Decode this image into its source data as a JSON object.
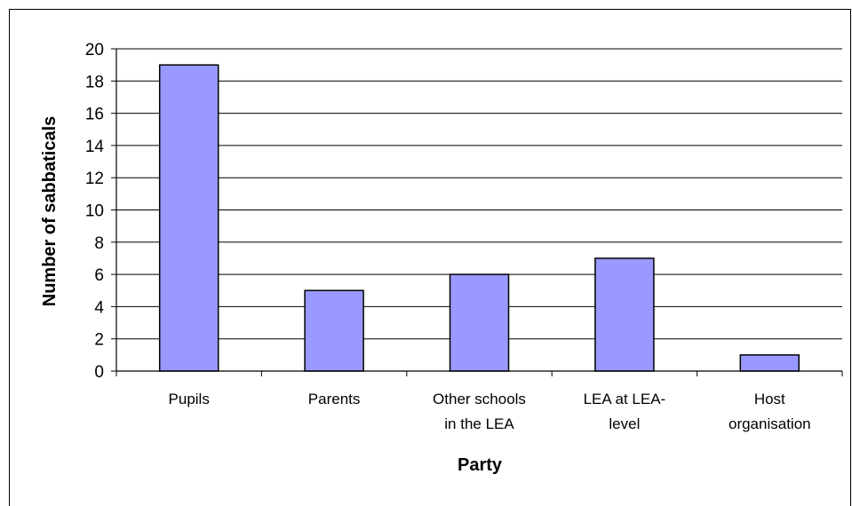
{
  "chart_data": {
    "type": "bar",
    "categories": [
      [
        "Pupils"
      ],
      [
        "Parents"
      ],
      [
        "Other schools",
        "in the LEA"
      ],
      [
        "LEA at LEA-",
        "level"
      ],
      [
        "Host",
        "organisation"
      ]
    ],
    "values": [
      19,
      5,
      6,
      7,
      1
    ],
    "title": "",
    "xlabel": "Party",
    "ylabel": "Number of sabbaticals",
    "ylim": [
      0,
      20
    ],
    "yticks": [
      0,
      2,
      4,
      6,
      8,
      10,
      12,
      14,
      16,
      18,
      20
    ],
    "grid": true,
    "legend": "none",
    "bar_color": "#9999ff",
    "bar_stroke": "#000000"
  }
}
